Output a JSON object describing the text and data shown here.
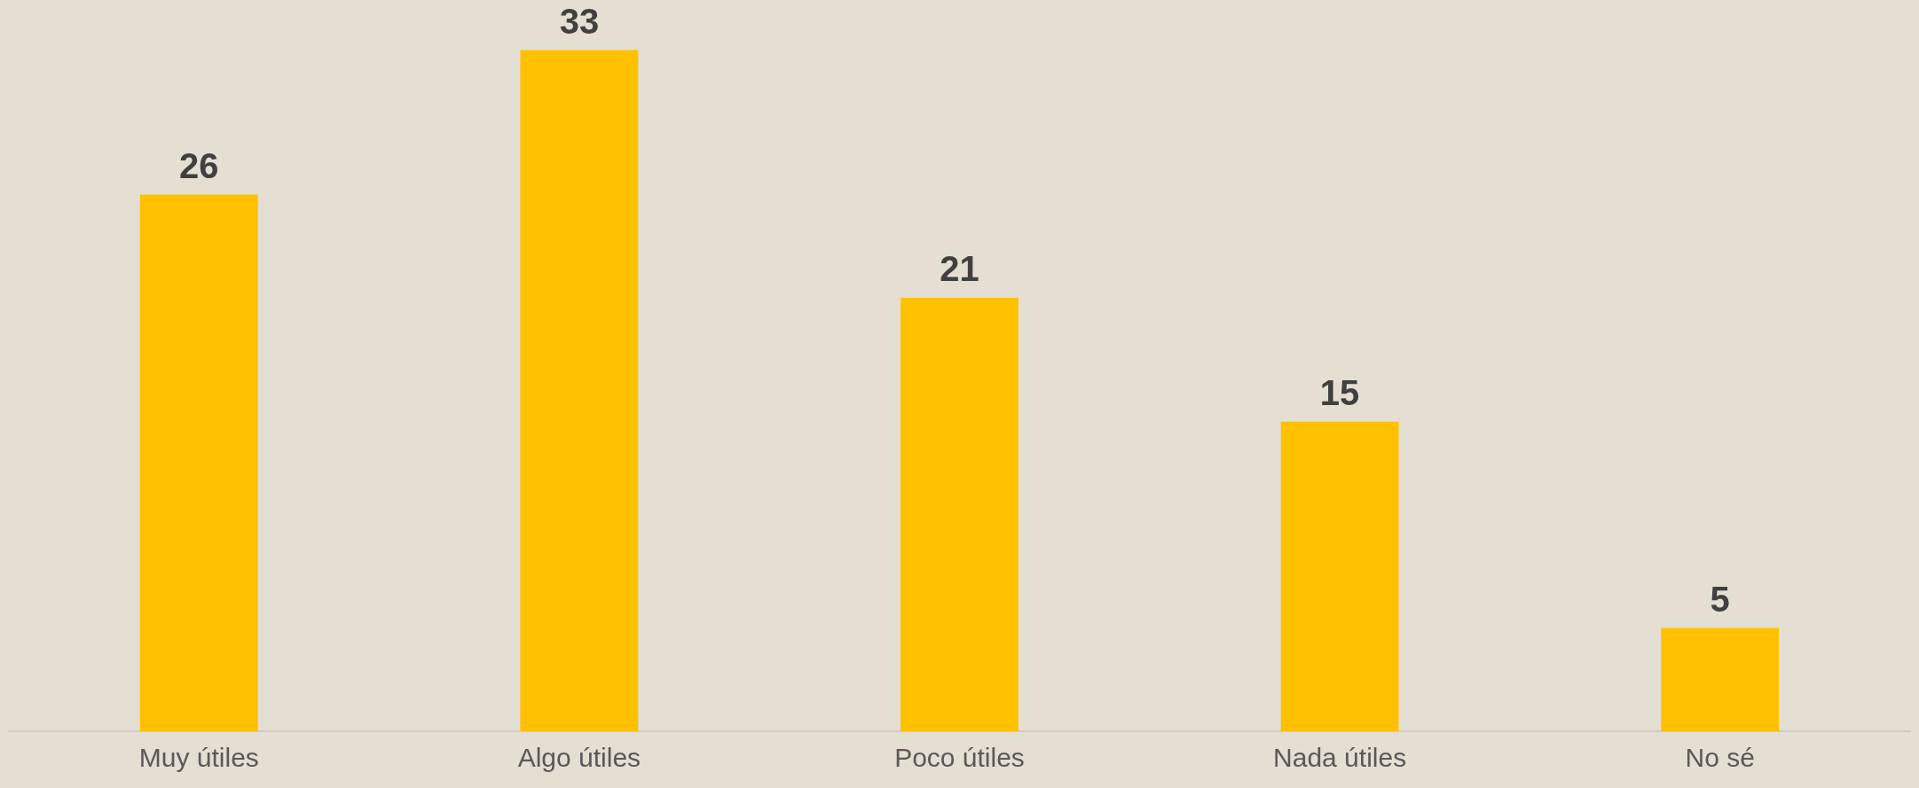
{
  "chart_data": {
    "type": "bar",
    "categories": [
      "Muy útiles",
      "Algo útiles",
      "Poco útiles",
      "Nada útiles",
      "No sé"
    ],
    "values": [
      26,
      33,
      21,
      15,
      5
    ],
    "color": "#ffc000",
    "data_labels": true,
    "grid": false,
    "legend": false
  }
}
